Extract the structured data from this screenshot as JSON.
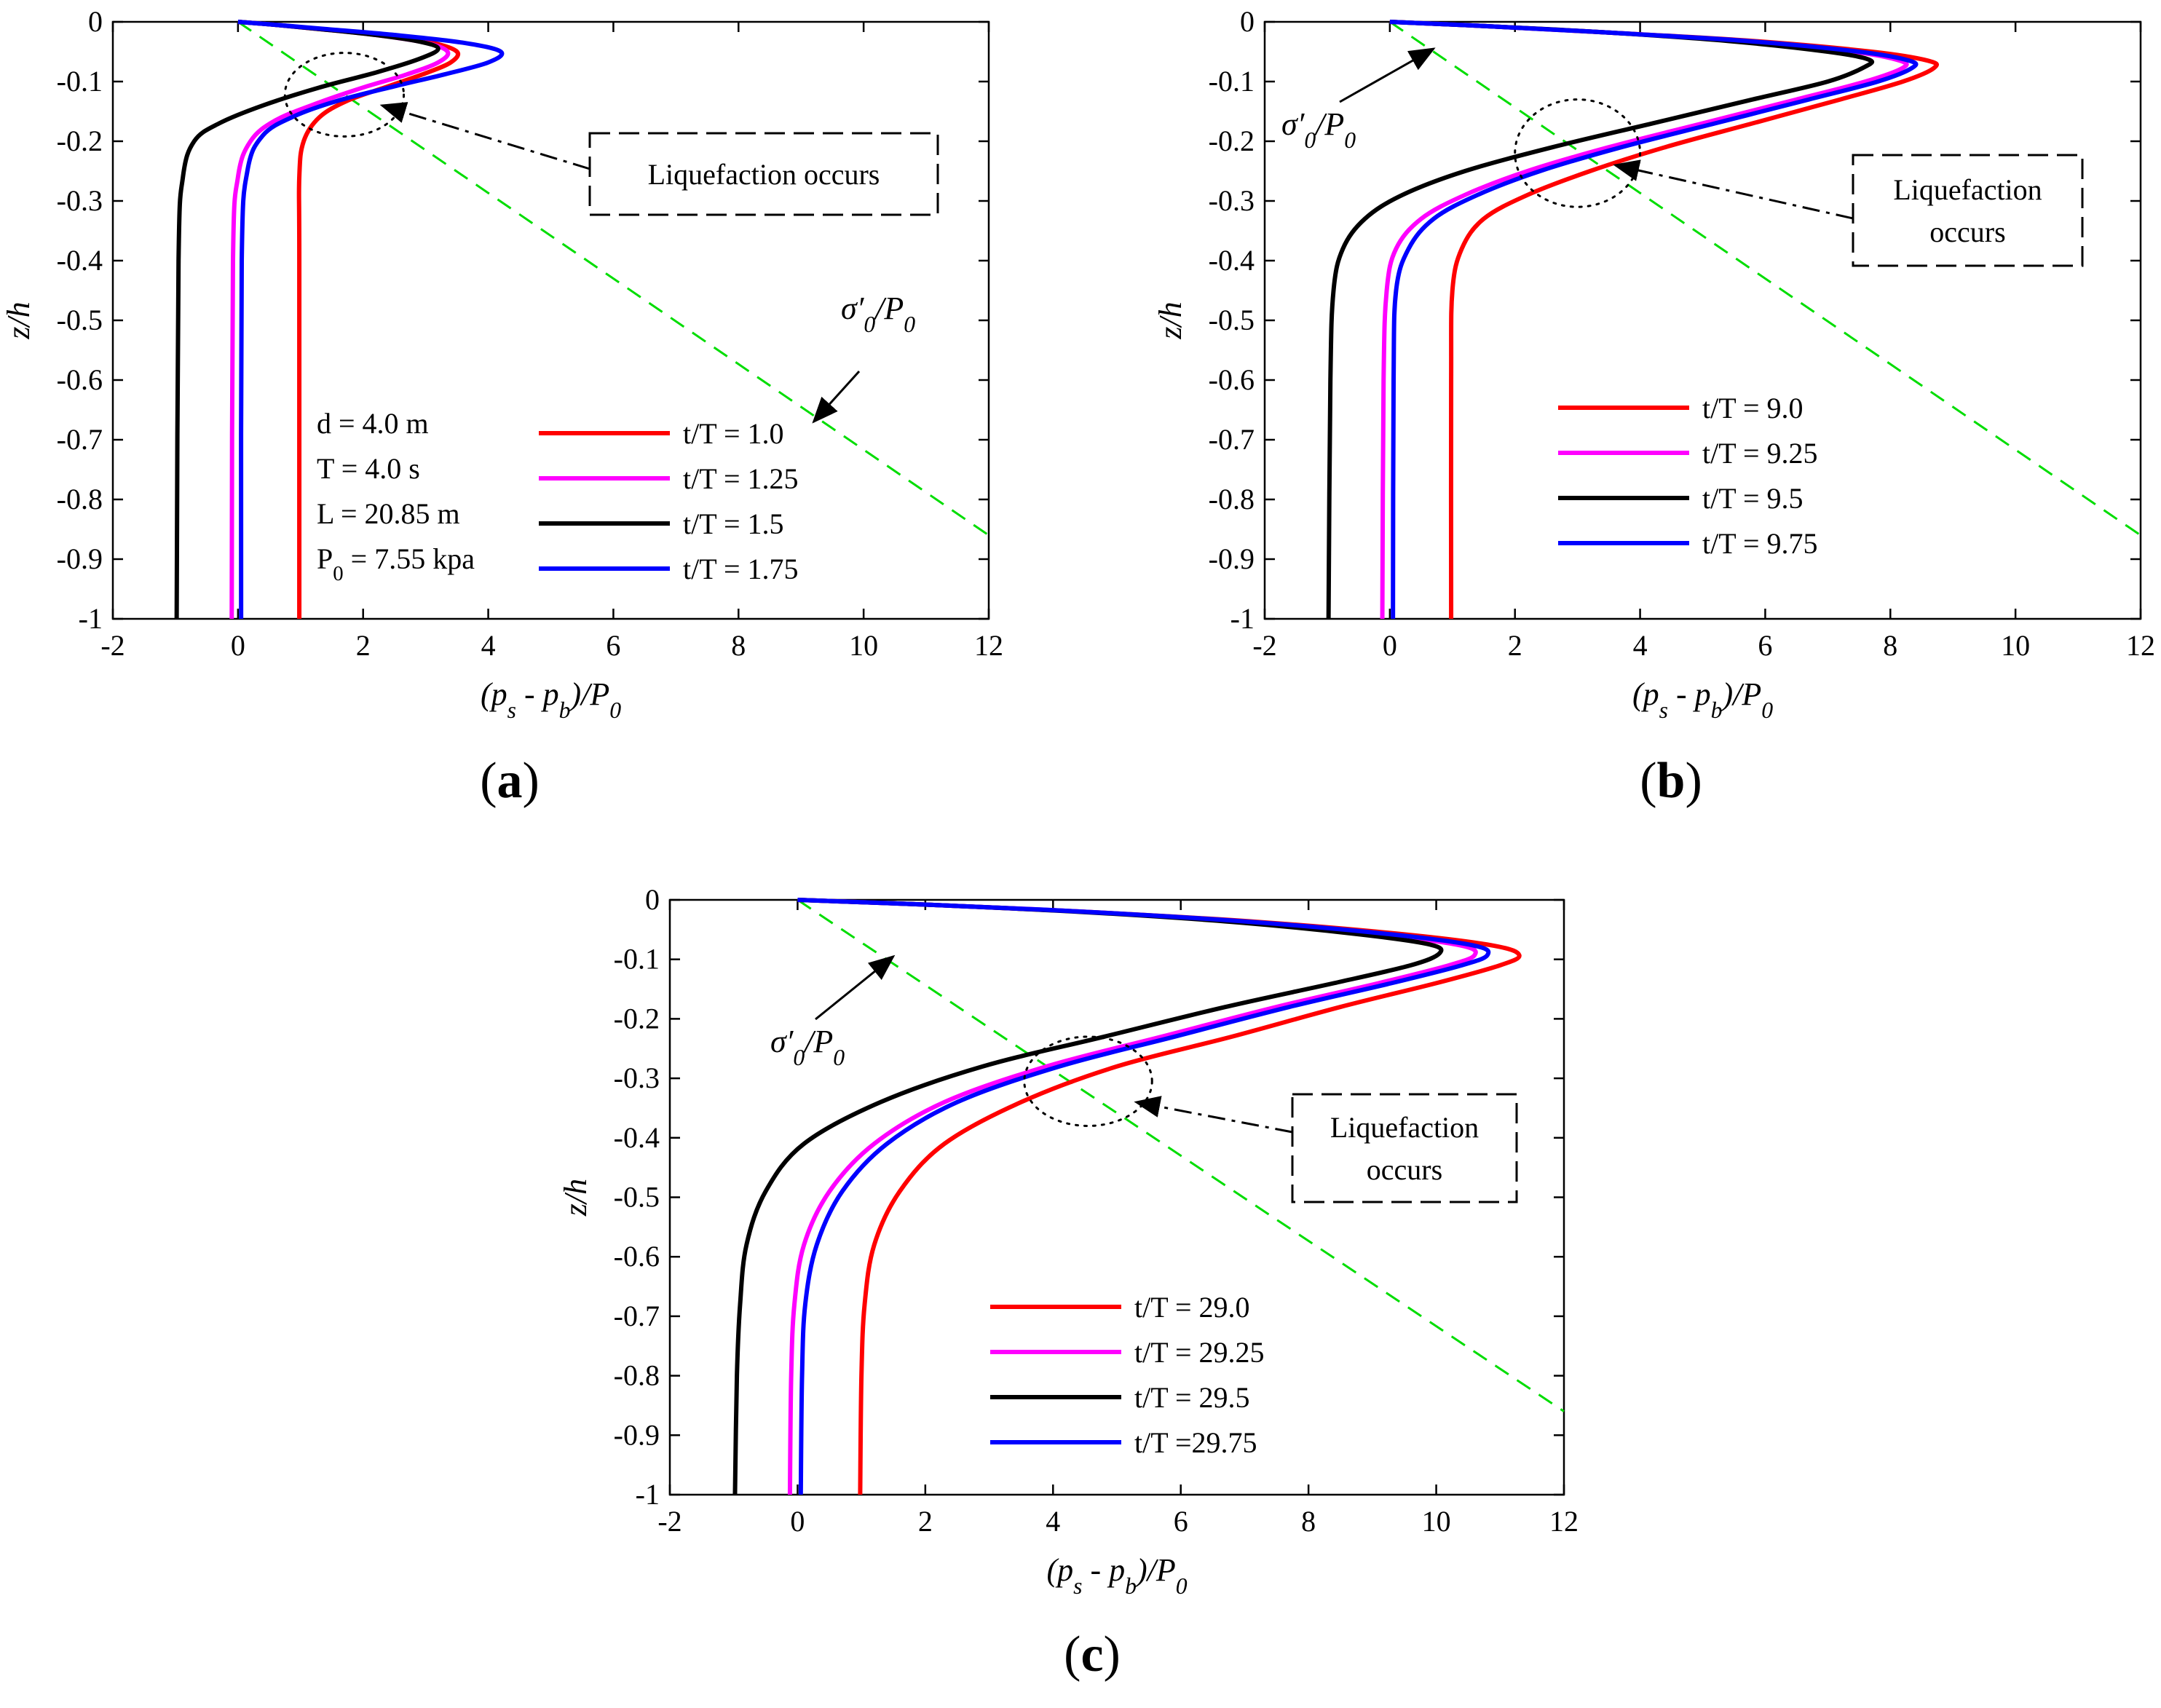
{
  "colors": {
    "red": "#ff0000",
    "magenta": "#ff00ff",
    "black": "#000000",
    "blue": "#0000ff",
    "green_dashed": "#00dd00"
  },
  "chart_data": [
    {
      "id": "a",
      "type": "line",
      "panel_label": "(a)",
      "xlabel": "(p_s - p_b)/P_0",
      "ylabel": "z/h",
      "xlim": [
        -2,
        12
      ],
      "ylim": [
        -1,
        0
      ],
      "xticks": [
        "-2",
        "0",
        "2",
        "4",
        "6",
        "8",
        "10",
        "12"
      ],
      "yticks": [
        "0",
        "-0.1",
        "-0.2",
        "-0.3",
        "-0.4",
        "-0.5",
        "-0.6",
        "-0.7",
        "-0.8",
        "-0.9",
        "-1"
      ],
      "grid": false,
      "legend_position": "bottom-center",
      "info_lines": [
        "d = 4.0 m",
        "T = 4.0 s",
        "L = 20.85 m",
        "P_0 = 7.55 kpa"
      ],
      "series": [
        {
          "name": "t/T = 1.0",
          "color": "red",
          "points": [
            [
              0,
              0
            ],
            [
              0.6,
              -0.005
            ],
            [
              1.3,
              -0.012
            ],
            [
              2.3,
              -0.022
            ],
            [
              3.1,
              -0.035
            ],
            [
              3.5,
              -0.05
            ],
            [
              3.4,
              -0.068
            ],
            [
              3.0,
              -0.086
            ],
            [
              2.4,
              -0.108
            ],
            [
              1.75,
              -0.132
            ],
            [
              1.3,
              -0.16
            ],
            [
              1.05,
              -0.2
            ],
            [
              0.98,
              -0.26
            ],
            [
              0.98,
              -0.4
            ],
            [
              0.98,
              -1.0
            ]
          ]
        },
        {
          "name": "t/T = 1.25",
          "color": "magenta",
          "points": [
            [
              0,
              0
            ],
            [
              0.6,
              -0.005
            ],
            [
              1.3,
              -0.012
            ],
            [
              2.2,
              -0.022
            ],
            [
              3.0,
              -0.035
            ],
            [
              3.35,
              -0.05
            ],
            [
              3.2,
              -0.068
            ],
            [
              2.7,
              -0.088
            ],
            [
              2.0,
              -0.11
            ],
            [
              1.3,
              -0.135
            ],
            [
              0.6,
              -0.165
            ],
            [
              0.2,
              -0.2
            ],
            [
              0.0,
              -0.26
            ],
            [
              -0.08,
              -0.4
            ],
            [
              -0.1,
              -1.0
            ]
          ]
        },
        {
          "name": "t/T = 1.5",
          "color": "black",
          "points": [
            [
              0,
              0
            ],
            [
              0.6,
              -0.005
            ],
            [
              1.3,
              -0.012
            ],
            [
              2.2,
              -0.022
            ],
            [
              2.9,
              -0.033
            ],
            [
              3.2,
              -0.045
            ],
            [
              2.9,
              -0.062
            ],
            [
              2.2,
              -0.085
            ],
            [
              1.3,
              -0.11
            ],
            [
              0.4,
              -0.14
            ],
            [
              -0.3,
              -0.17
            ],
            [
              -0.7,
              -0.2
            ],
            [
              -0.88,
              -0.26
            ],
            [
              -0.95,
              -0.4
            ],
            [
              -0.98,
              -1.0
            ]
          ]
        },
        {
          "name": "t/T = 1.75",
          "color": "blue",
          "points": [
            [
              0,
              0
            ],
            [
              0.6,
              -0.005
            ],
            [
              1.4,
              -0.012
            ],
            [
              2.5,
              -0.022
            ],
            [
              3.6,
              -0.035
            ],
            [
              4.2,
              -0.05
            ],
            [
              4.0,
              -0.068
            ],
            [
              3.3,
              -0.088
            ],
            [
              2.5,
              -0.108
            ],
            [
              1.6,
              -0.132
            ],
            [
              0.9,
              -0.158
            ],
            [
              0.4,
              -0.19
            ],
            [
              0.15,
              -0.25
            ],
            [
              0.06,
              -0.4
            ],
            [
              0.05,
              -1.0
            ]
          ]
        }
      ],
      "effective_stress_line": {
        "points": [
          [
            0,
            0
          ],
          [
            12,
            -0.86
          ]
        ],
        "style": "dashed"
      },
      "annotations": {
        "liquefaction_text": [
          "Liquefaction occurs"
        ],
        "sigma_label": "σ′_0/P_0",
        "ellipse_center": [
          1.7,
          -0.122
        ],
        "ellipse_radii": [
          0.95,
          0.07
        ],
        "sigma_arrow_tip": [
          9.2,
          -0.67
        ],
        "liq_arrow_tip": [
          2.3,
          -0.14
        ]
      }
    },
    {
      "id": "b",
      "type": "line",
      "panel_label": "(b)",
      "xlabel": "(p_s - p_b)/P_0",
      "ylabel": "z/h",
      "xlim": [
        -2,
        12
      ],
      "ylim": [
        -1,
        0
      ],
      "xticks": [
        "-2",
        "0",
        "2",
        "4",
        "6",
        "8",
        "10",
        "12"
      ],
      "yticks": [
        "0",
        "-0.1",
        "-0.2",
        "-0.3",
        "-0.4",
        "-0.5",
        "-0.6",
        "-0.7",
        "-0.8",
        "-0.9",
        "-1"
      ],
      "grid": false,
      "legend_position": "bottom-center",
      "series": [
        {
          "name": "t/T = 9.0",
          "color": "red",
          "points": [
            [
              0,
              0
            ],
            [
              1.5,
              -0.007
            ],
            [
              3.5,
              -0.018
            ],
            [
              5.8,
              -0.032
            ],
            [
              7.7,
              -0.05
            ],
            [
              8.6,
              -0.065
            ],
            [
              8.7,
              -0.077
            ],
            [
              8.2,
              -0.1
            ],
            [
              7.2,
              -0.13
            ],
            [
              5.8,
              -0.17
            ],
            [
              4.4,
              -0.21
            ],
            [
              3.2,
              -0.25
            ],
            [
              2.2,
              -0.29
            ],
            [
              1.5,
              -0.33
            ],
            [
              1.15,
              -0.38
            ],
            [
              1.0,
              -0.45
            ],
            [
              0.98,
              -0.6
            ],
            [
              0.98,
              -1.0
            ]
          ]
        },
        {
          "name": "t/T = 9.25",
          "color": "magenta",
          "points": [
            [
              0,
              0
            ],
            [
              1.5,
              -0.007
            ],
            [
              3.5,
              -0.018
            ],
            [
              5.6,
              -0.032
            ],
            [
              7.4,
              -0.05
            ],
            [
              8.15,
              -0.065
            ],
            [
              8.2,
              -0.077
            ],
            [
              7.6,
              -0.1
            ],
            [
              6.5,
              -0.13
            ],
            [
              5.0,
              -0.17
            ],
            [
              3.5,
              -0.21
            ],
            [
              2.2,
              -0.25
            ],
            [
              1.2,
              -0.29
            ],
            [
              0.5,
              -0.33
            ],
            [
              0.1,
              -0.38
            ],
            [
              -0.05,
              -0.45
            ],
            [
              -0.1,
              -0.6
            ],
            [
              -0.12,
              -1.0
            ]
          ]
        },
        {
          "name": "t/T = 9.5",
          "color": "black",
          "points": [
            [
              0,
              0
            ],
            [
              1.5,
              -0.007
            ],
            [
              3.5,
              -0.018
            ],
            [
              5.4,
              -0.032
            ],
            [
              7.0,
              -0.05
            ],
            [
              7.65,
              -0.063
            ],
            [
              7.6,
              -0.075
            ],
            [
              7.0,
              -0.1
            ],
            [
              5.8,
              -0.13
            ],
            [
              4.2,
              -0.17
            ],
            [
              2.6,
              -0.21
            ],
            [
              1.2,
              -0.25
            ],
            [
              0.2,
              -0.29
            ],
            [
              -0.4,
              -0.33
            ],
            [
              -0.75,
              -0.38
            ],
            [
              -0.9,
              -0.45
            ],
            [
              -0.95,
              -0.6
            ],
            [
              -0.98,
              -1.0
            ]
          ]
        },
        {
          "name": "t/T = 9.75",
          "color": "blue",
          "points": [
            [
              0,
              0
            ],
            [
              1.5,
              -0.007
            ],
            [
              3.5,
              -0.018
            ],
            [
              5.7,
              -0.032
            ],
            [
              7.5,
              -0.05
            ],
            [
              8.3,
              -0.065
            ],
            [
              8.35,
              -0.077
            ],
            [
              7.8,
              -0.1
            ],
            [
              6.7,
              -0.13
            ],
            [
              5.2,
              -0.17
            ],
            [
              3.7,
              -0.21
            ],
            [
              2.4,
              -0.25
            ],
            [
              1.4,
              -0.29
            ],
            [
              0.7,
              -0.33
            ],
            [
              0.3,
              -0.38
            ],
            [
              0.1,
              -0.45
            ],
            [
              0.06,
              -0.6
            ],
            [
              0.05,
              -1.0
            ]
          ]
        }
      ],
      "effective_stress_line": {
        "points": [
          [
            0,
            0
          ],
          [
            12,
            -0.86
          ]
        ],
        "style": "dashed"
      },
      "annotations": {
        "liquefaction_text": [
          "Liquefaction",
          "occurs"
        ],
        "sigma_label": "σ′_0/P_0",
        "ellipse_center": [
          3.0,
          -0.22
        ],
        "ellipse_radii": [
          1.0,
          0.09
        ],
        "sigma_arrow_tip": [
          0.7,
          -0.045
        ],
        "liq_arrow_tip": [
          3.6,
          -0.24
        ]
      }
    },
    {
      "id": "c",
      "type": "line",
      "panel_label": "(c)",
      "xlabel": "(p_s - p_b)/P_0",
      "ylabel": "z/h",
      "xlim": [
        -2,
        12
      ],
      "ylim": [
        -1,
        0
      ],
      "xticks": [
        "-2",
        "0",
        "2",
        "4",
        "6",
        "8",
        "10",
        "12"
      ],
      "yticks": [
        "0",
        "-0.1",
        "-0.2",
        "-0.3",
        "-0.4",
        "-0.5",
        "-0.6",
        "-0.7",
        "-0.8",
        "-0.9",
        "-1"
      ],
      "grid": false,
      "legend_position": "bottom-center",
      "series": [
        {
          "name": "t/T = 29.0",
          "color": "red",
          "points": [
            [
              0,
              0
            ],
            [
              2,
              -0.008
            ],
            [
              4.5,
              -0.02
            ],
            [
              7.2,
              -0.037
            ],
            [
              9.5,
              -0.058
            ],
            [
              10.9,
              -0.077
            ],
            [
              11.3,
              -0.093
            ],
            [
              11.0,
              -0.11
            ],
            [
              10.0,
              -0.14
            ],
            [
              8.5,
              -0.18
            ],
            [
              6.8,
              -0.23
            ],
            [
              5.0,
              -0.28
            ],
            [
              3.5,
              -0.34
            ],
            [
              2.3,
              -0.41
            ],
            [
              1.6,
              -0.49
            ],
            [
              1.2,
              -0.58
            ],
            [
              1.05,
              -0.68
            ],
            [
              1.0,
              -0.8
            ],
            [
              0.98,
              -1.0
            ]
          ]
        },
        {
          "name": "t/T = 29.25",
          "color": "magenta",
          "points": [
            [
              0,
              0
            ],
            [
              2,
              -0.008
            ],
            [
              4.5,
              -0.02
            ],
            [
              7.0,
              -0.037
            ],
            [
              9.1,
              -0.058
            ],
            [
              10.4,
              -0.077
            ],
            [
              10.6,
              -0.093
            ],
            [
              10.2,
              -0.11
            ],
            [
              9.1,
              -0.14
            ],
            [
              7.5,
              -0.18
            ],
            [
              5.7,
              -0.23
            ],
            [
              3.9,
              -0.28
            ],
            [
              2.3,
              -0.34
            ],
            [
              1.2,
              -0.41
            ],
            [
              0.5,
              -0.49
            ],
            [
              0.1,
              -0.58
            ],
            [
              -0.05,
              -0.68
            ],
            [
              -0.1,
              -0.8
            ],
            [
              -0.12,
              -1.0
            ]
          ]
        },
        {
          "name": "t/T = 29.5",
          "color": "black",
          "points": [
            [
              0,
              0
            ],
            [
              2,
              -0.008
            ],
            [
              4.4,
              -0.02
            ],
            [
              6.8,
              -0.037
            ],
            [
              8.8,
              -0.058
            ],
            [
              9.9,
              -0.075
            ],
            [
              10.05,
              -0.09
            ],
            [
              9.6,
              -0.11
            ],
            [
              8.4,
              -0.14
            ],
            [
              6.7,
              -0.18
            ],
            [
              4.8,
              -0.23
            ],
            [
              2.9,
              -0.28
            ],
            [
              1.3,
              -0.34
            ],
            [
              0.1,
              -0.41
            ],
            [
              -0.5,
              -0.49
            ],
            [
              -0.8,
              -0.58
            ],
            [
              -0.9,
              -0.68
            ],
            [
              -0.95,
              -0.8
            ],
            [
              -0.98,
              -1.0
            ]
          ]
        },
        {
          "name": "t/T =29.75",
          "color": "blue",
          "points": [
            [
              0,
              0
            ],
            [
              2,
              -0.008
            ],
            [
              4.5,
              -0.02
            ],
            [
              7.1,
              -0.037
            ],
            [
              9.3,
              -0.058
            ],
            [
              10.6,
              -0.077
            ],
            [
              10.8,
              -0.093
            ],
            [
              10.4,
              -0.11
            ],
            [
              9.3,
              -0.14
            ],
            [
              7.7,
              -0.18
            ],
            [
              5.9,
              -0.23
            ],
            [
              4.1,
              -0.28
            ],
            [
              2.5,
              -0.34
            ],
            [
              1.4,
              -0.41
            ],
            [
              0.7,
              -0.49
            ],
            [
              0.3,
              -0.58
            ],
            [
              0.12,
              -0.68
            ],
            [
              0.07,
              -0.8
            ],
            [
              0.05,
              -1.0
            ]
          ]
        }
      ],
      "effective_stress_line": {
        "points": [
          [
            0,
            0
          ],
          [
            12,
            -0.86
          ]
        ],
        "style": "dashed"
      },
      "annotations": {
        "liquefaction_text": [
          "Liquefaction",
          "occurs"
        ],
        "sigma_label": "σ′_0/P_0",
        "ellipse_center": [
          4.55,
          -0.305
        ],
        "ellipse_radii": [
          1.0,
          0.075
        ],
        "sigma_arrow_tip": [
          1.5,
          -0.095
        ],
        "liq_arrow_tip": [
          5.3,
          -0.34
        ]
      }
    }
  ]
}
